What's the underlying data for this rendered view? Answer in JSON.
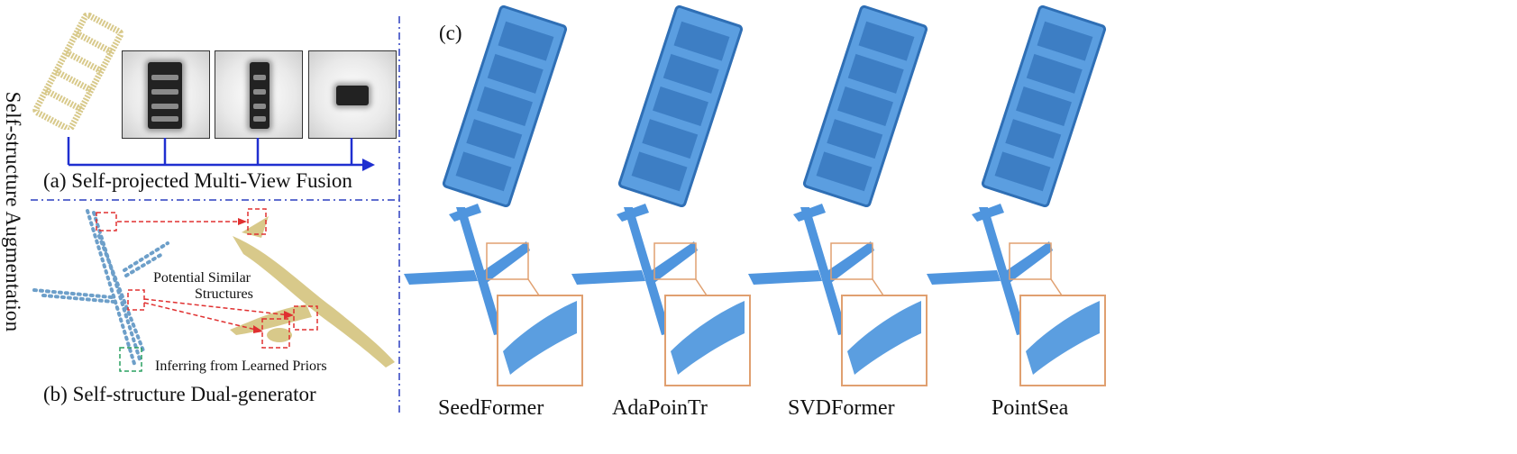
{
  "figure": {
    "side_title": "Self-structure Augmentation",
    "panel_a": {
      "caption": "(a) Self-projected Multi-View Fusion"
    },
    "panel_b": {
      "caption": "(b) Self-structure Dual-generator",
      "annotation_similar_line1": "Potential Similar",
      "annotation_similar_line2": "Structures",
      "annotation_priors": "Inferring from Learned Priors"
    },
    "panel_c": {
      "label": "(c)",
      "methods": [
        "SeedFormer",
        "AdaPoinTr",
        "SVDFormer",
        "PointSea"
      ]
    }
  },
  "colors": {
    "blue_points": "#4a90d9",
    "yellow_points": "#d8c98a",
    "arrow_blue": "#1f2fd0",
    "red_dashed": "#e03030",
    "green_dashed": "#2aa060",
    "zoom_box": "#e0a070",
    "divider": "#2b3fbf"
  }
}
